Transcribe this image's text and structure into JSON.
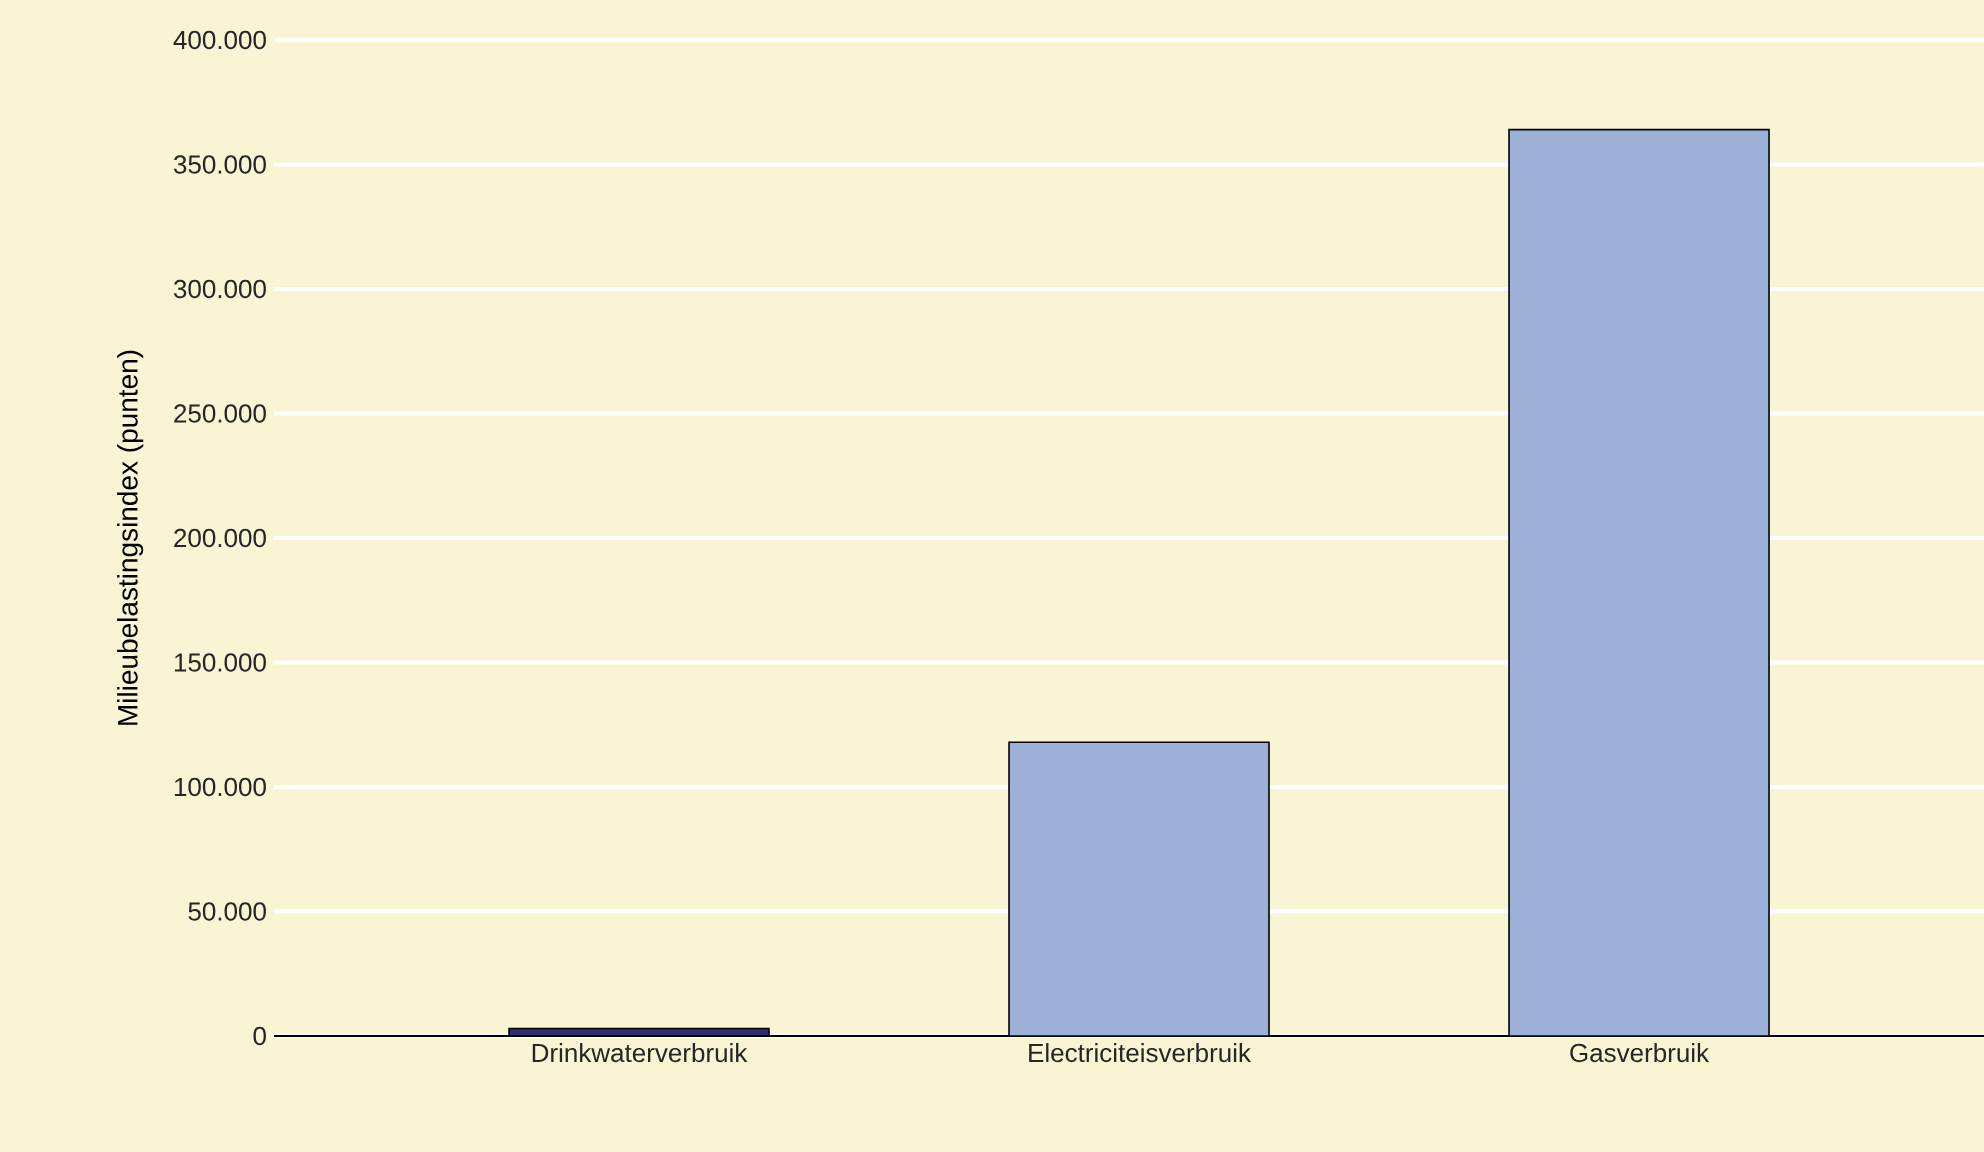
{
  "chart_data": {
    "type": "bar",
    "ylabel": "Milieubelastingsindex (punten)",
    "categories": [
      "Drinkwaterverbruik",
      "Electriciteisverbruik",
      "Gasverbruik"
    ],
    "values": [
      3000,
      118000,
      364000
    ],
    "colors": [
      "#2e2b6e",
      "#9cb0d8",
      "#9cb0d8"
    ],
    "ylim": [
      0,
      400000
    ],
    "yticks": [
      {
        "value": 0,
        "label": "0"
      },
      {
        "value": 50000,
        "label": "50.000"
      },
      {
        "value": 100000,
        "label": "100.000"
      },
      {
        "value": 150000,
        "label": "150.000"
      },
      {
        "value": 200000,
        "label": "200.000"
      },
      {
        "value": 250000,
        "label": "250.000"
      },
      {
        "value": 300000,
        "label": "300.000"
      },
      {
        "value": 350000,
        "label": "350.000"
      },
      {
        "value": 400000,
        "label": "400.000"
      }
    ],
    "grid": "y"
  }
}
